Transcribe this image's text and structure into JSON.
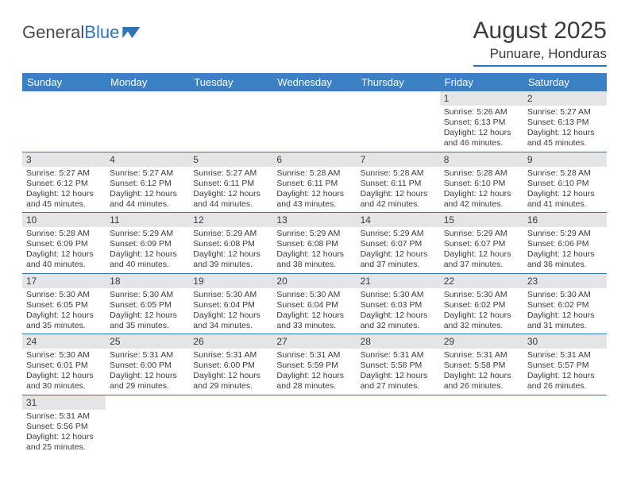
{
  "brand": {
    "part1": "General",
    "part2": "Blue"
  },
  "title": "August 2025",
  "location": "Punuare, Honduras",
  "colors": {
    "accent": "#2a75bb",
    "header_bg": "#3a80c5",
    "text": "#3b3b3b",
    "daynum_bg": "#e4e5e6"
  },
  "weekdays": [
    "Sunday",
    "Monday",
    "Tuesday",
    "Wednesday",
    "Thursday",
    "Friday",
    "Saturday"
  ],
  "weeks": [
    [
      null,
      null,
      null,
      null,
      null,
      {
        "n": "1",
        "sr": "5:26 AM",
        "ss": "6:13 PM",
        "dl": "12 hours and 46 minutes."
      },
      {
        "n": "2",
        "sr": "5:27 AM",
        "ss": "6:13 PM",
        "dl": "12 hours and 45 minutes."
      }
    ],
    [
      {
        "n": "3",
        "sr": "5:27 AM",
        "ss": "6:12 PM",
        "dl": "12 hours and 45 minutes."
      },
      {
        "n": "4",
        "sr": "5:27 AM",
        "ss": "6:12 PM",
        "dl": "12 hours and 44 minutes."
      },
      {
        "n": "5",
        "sr": "5:27 AM",
        "ss": "6:11 PM",
        "dl": "12 hours and 44 minutes."
      },
      {
        "n": "6",
        "sr": "5:28 AM",
        "ss": "6:11 PM",
        "dl": "12 hours and 43 minutes."
      },
      {
        "n": "7",
        "sr": "5:28 AM",
        "ss": "6:11 PM",
        "dl": "12 hours and 42 minutes."
      },
      {
        "n": "8",
        "sr": "5:28 AM",
        "ss": "6:10 PM",
        "dl": "12 hours and 42 minutes."
      },
      {
        "n": "9",
        "sr": "5:28 AM",
        "ss": "6:10 PM",
        "dl": "12 hours and 41 minutes."
      }
    ],
    [
      {
        "n": "10",
        "sr": "5:28 AM",
        "ss": "6:09 PM",
        "dl": "12 hours and 40 minutes."
      },
      {
        "n": "11",
        "sr": "5:29 AM",
        "ss": "6:09 PM",
        "dl": "12 hours and 40 minutes."
      },
      {
        "n": "12",
        "sr": "5:29 AM",
        "ss": "6:08 PM",
        "dl": "12 hours and 39 minutes."
      },
      {
        "n": "13",
        "sr": "5:29 AM",
        "ss": "6:08 PM",
        "dl": "12 hours and 38 minutes."
      },
      {
        "n": "14",
        "sr": "5:29 AM",
        "ss": "6:07 PM",
        "dl": "12 hours and 37 minutes."
      },
      {
        "n": "15",
        "sr": "5:29 AM",
        "ss": "6:07 PM",
        "dl": "12 hours and 37 minutes."
      },
      {
        "n": "16",
        "sr": "5:29 AM",
        "ss": "6:06 PM",
        "dl": "12 hours and 36 minutes."
      }
    ],
    [
      {
        "n": "17",
        "sr": "5:30 AM",
        "ss": "6:05 PM",
        "dl": "12 hours and 35 minutes."
      },
      {
        "n": "18",
        "sr": "5:30 AM",
        "ss": "6:05 PM",
        "dl": "12 hours and 35 minutes."
      },
      {
        "n": "19",
        "sr": "5:30 AM",
        "ss": "6:04 PM",
        "dl": "12 hours and 34 minutes."
      },
      {
        "n": "20",
        "sr": "5:30 AM",
        "ss": "6:04 PM",
        "dl": "12 hours and 33 minutes."
      },
      {
        "n": "21",
        "sr": "5:30 AM",
        "ss": "6:03 PM",
        "dl": "12 hours and 32 minutes."
      },
      {
        "n": "22",
        "sr": "5:30 AM",
        "ss": "6:02 PM",
        "dl": "12 hours and 32 minutes."
      },
      {
        "n": "23",
        "sr": "5:30 AM",
        "ss": "6:02 PM",
        "dl": "12 hours and 31 minutes."
      }
    ],
    [
      {
        "n": "24",
        "sr": "5:30 AM",
        "ss": "6:01 PM",
        "dl": "12 hours and 30 minutes."
      },
      {
        "n": "25",
        "sr": "5:31 AM",
        "ss": "6:00 PM",
        "dl": "12 hours and 29 minutes."
      },
      {
        "n": "26",
        "sr": "5:31 AM",
        "ss": "6:00 PM",
        "dl": "12 hours and 29 minutes."
      },
      {
        "n": "27",
        "sr": "5:31 AM",
        "ss": "5:59 PM",
        "dl": "12 hours and 28 minutes."
      },
      {
        "n": "28",
        "sr": "5:31 AM",
        "ss": "5:58 PM",
        "dl": "12 hours and 27 minutes."
      },
      {
        "n": "29",
        "sr": "5:31 AM",
        "ss": "5:58 PM",
        "dl": "12 hours and 26 minutes."
      },
      {
        "n": "30",
        "sr": "5:31 AM",
        "ss": "5:57 PM",
        "dl": "12 hours and 26 minutes."
      }
    ],
    [
      {
        "n": "31",
        "sr": "5:31 AM",
        "ss": "5:56 PM",
        "dl": "12 hours and 25 minutes."
      },
      null,
      null,
      null,
      null,
      null,
      null
    ]
  ],
  "labels": {
    "sunrise": "Sunrise: ",
    "sunset": "Sunset: ",
    "daylight": "Daylight: "
  }
}
